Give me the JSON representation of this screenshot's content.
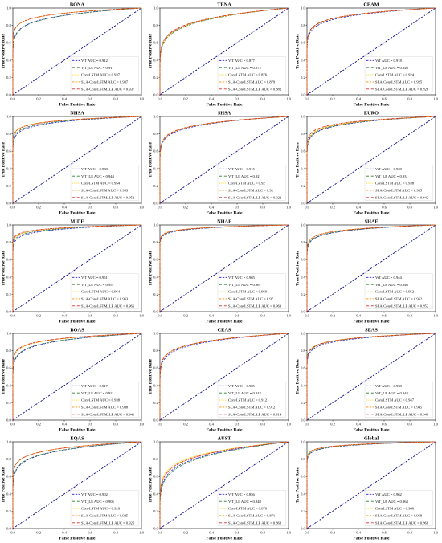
{
  "chart_data": [
    {
      "type": "line",
      "title": "BONA",
      "xlabel": "False Positive Rate",
      "ylabel": "True Positive Rate",
      "xlim": [
        0,
        1
      ],
      "ylim": [
        0,
        1
      ],
      "xticks": [
        "0.0",
        "0.2",
        "0.4",
        "0.6",
        "0.8",
        "1.0"
      ],
      "yticks": [
        "0.0",
        "0.2",
        "0.4",
        "0.6",
        "0.8",
        "1.0"
      ],
      "legend_position": "lower-right",
      "series": [
        {
          "name": "ViT AUC = 0.912",
          "color": "#1f1fd8",
          "dash": "dashed",
          "auc": 0.912
        },
        {
          "name": "ViT_LE AUC = 0.91",
          "color": "#2e7d32",
          "dash": "dashdot",
          "auc": 0.91
        },
        {
          "name": "ConvLSTM AUC = 0.937",
          "color": "#ffd600",
          "dash": "dotted",
          "auc": 0.937
        },
        {
          "name": "SLA-ConvLSTM AUC = 0.937",
          "color": "#ff8c00",
          "dash": "dashed",
          "auc": 0.937
        },
        {
          "name": "SLA-ConvLSTM_LE AUC = 0.937",
          "color": "#d32f2f",
          "dash": "dashdot",
          "auc": 0.937
        }
      ]
    },
    {
      "type": "line",
      "title": "TENA",
      "xlabel": "False Positive Rate",
      "ylabel": "True Positive Rate",
      "xlim": [
        0,
        1
      ],
      "ylim": [
        0,
        1
      ],
      "xticks": [
        "0.0",
        "0.2",
        "0.4",
        "0.6",
        "0.8",
        "1.0"
      ],
      "yticks": [
        "0.0",
        "0.2",
        "0.4",
        "0.6",
        "0.8",
        "1.0"
      ],
      "legend_position": "lower-right",
      "series": [
        {
          "name": "ViT AUC = 0.877",
          "color": "#1f1fd8",
          "dash": "dashed",
          "auc": 0.877
        },
        {
          "name": "ViT_LE AUC = 0.872",
          "color": "#2e7d32",
          "dash": "dashdot",
          "auc": 0.872
        },
        {
          "name": "ConvLSTM AUC = 0.876",
          "color": "#ffd600",
          "dash": "dotted",
          "auc": 0.876
        },
        {
          "name": "SLA-ConvLSTM AUC = 0.879",
          "color": "#ff8c00",
          "dash": "dashed",
          "auc": 0.879
        },
        {
          "name": "SLA-ConvLSTM_LE AUC = 0.882",
          "color": "#d32f2f",
          "dash": "dashdot",
          "auc": 0.882
        }
      ]
    },
    {
      "type": "line",
      "title": "CEAM",
      "xlabel": "False Positive Rate",
      "ylabel": "True Positive Rate",
      "xlim": [
        0,
        1
      ],
      "ylim": [
        0,
        1
      ],
      "xticks": [
        "0.0",
        "0.2",
        "0.4",
        "0.6",
        "0.8",
        "1.0"
      ],
      "yticks": [
        "0.0",
        "0.2",
        "0.4",
        "0.6",
        "0.8",
        "1.0"
      ],
      "legend_position": "lower-right",
      "series": [
        {
          "name": "ViT AUC = 0.918",
          "color": "#1f1fd8",
          "dash": "dashed",
          "auc": 0.918
        },
        {
          "name": "ViT_LE AUC = 0.926",
          "color": "#2e7d32",
          "dash": "dashdot",
          "auc": 0.926
        },
        {
          "name": "ConvLSTM AUC = 0.924",
          "color": "#ffd600",
          "dash": "dotted",
          "auc": 0.924
        },
        {
          "name": "SLA-ConvLSTM AUC = 0.925",
          "color": "#ff8c00",
          "dash": "dashed",
          "auc": 0.925
        },
        {
          "name": "SLA-ConvLSTM_LE AUC = 0.926",
          "color": "#d32f2f",
          "dash": "dashdot",
          "auc": 0.926
        }
      ]
    },
    {
      "type": "line",
      "title": "NHSA",
      "xlabel": "False Positive Rate",
      "ylabel": "True Positive Rate",
      "xlim": [
        0,
        1
      ],
      "ylim": [
        0,
        1
      ],
      "xticks": [
        "0.0",
        "0.2",
        "0.4",
        "0.6",
        "0.8",
        "1.0"
      ],
      "yticks": [
        "0.0",
        "0.2",
        "0.4",
        "0.6",
        "0.8",
        "1.0"
      ],
      "legend_position": "lower-right",
      "series": [
        {
          "name": "ViT AUC = 0.938",
          "color": "#1f1fd8",
          "dash": "dashed",
          "auc": 0.938
        },
        {
          "name": "ViT_LE AUC = 0.944",
          "color": "#2e7d32",
          "dash": "dashdot",
          "auc": 0.944
        },
        {
          "name": "ConvLSTM AUC = 0.954",
          "color": "#ffd600",
          "dash": "dotted",
          "auc": 0.954
        },
        {
          "name": "SLA-ConvLSTM AUC = 0.953",
          "color": "#ff8c00",
          "dash": "dashed",
          "auc": 0.953
        },
        {
          "name": "SLA-ConvLSTM_LE AUC = 0.952",
          "color": "#d32f2f",
          "dash": "dashdot",
          "auc": 0.952
        }
      ]
    },
    {
      "type": "line",
      "title": "SHSA",
      "xlabel": "False Positive Rate",
      "ylabel": "True Positive Rate",
      "xlim": [
        0,
        1
      ],
      "ylim": [
        0,
        1
      ],
      "xticks": [
        "0.0",
        "0.2",
        "0.4",
        "0.6",
        "0.8",
        "1.0"
      ],
      "yticks": [
        "0.0",
        "0.2",
        "0.4",
        "0.6",
        "0.8",
        "1.0"
      ],
      "legend_position": "lower-right",
      "series": [
        {
          "name": "ViT AUC = 0.915",
          "color": "#1f1fd8",
          "dash": "dashed",
          "auc": 0.915
        },
        {
          "name": "ViT_LE AUC = 0.92",
          "color": "#2e7d32",
          "dash": "dashdot",
          "auc": 0.92
        },
        {
          "name": "ConvLSTM AUC = 0.92",
          "color": "#ffd600",
          "dash": "dotted",
          "auc": 0.92
        },
        {
          "name": "SLA-ConvLSTM AUC = 0.92",
          "color": "#ff8c00",
          "dash": "dashed",
          "auc": 0.92
        },
        {
          "name": "SLA-ConvLSTM_LE AUC = 0.922",
          "color": "#d32f2f",
          "dash": "dashdot",
          "auc": 0.922
        }
      ]
    },
    {
      "type": "line",
      "title": "EURO",
      "xlabel": "False Positive Rate",
      "ylabel": "True Positive Rate",
      "xlim": [
        0,
        1
      ],
      "ylim": [
        0,
        1
      ],
      "xticks": [
        "0.0",
        "0.2",
        "0.4",
        "0.6",
        "0.8",
        "1.0"
      ],
      "yticks": [
        "0.0",
        "0.2",
        "0.4",
        "0.6",
        "0.8",
        "1.0"
      ],
      "legend_position": "lower-right",
      "series": [
        {
          "name": "ViT AUC = 0.928",
          "color": "#1f1fd8",
          "dash": "dashed",
          "auc": 0.928
        },
        {
          "name": "ViT_LE AUC = 0.931",
          "color": "#2e7d32",
          "dash": "dashdot",
          "auc": 0.931
        },
        {
          "name": "ConvLSTM AUC = 0.938",
          "color": "#ffd600",
          "dash": "dotted",
          "auc": 0.938
        },
        {
          "name": "SLA-ConvLSTM AUC = 0.935",
          "color": "#ff8c00",
          "dash": "dashed",
          "auc": 0.935
        },
        {
          "name": "SLA-ConvLSTM_LE AUC = 0.942",
          "color": "#d32f2f",
          "dash": "dashdot",
          "auc": 0.942
        }
      ]
    },
    {
      "type": "line",
      "title": "MIDE",
      "xlabel": "False Positive Rate",
      "ylabel": "True Positive Rate",
      "xlim": [
        0,
        1
      ],
      "ylim": [
        0,
        1
      ],
      "xticks": [
        "0.0",
        "0.2",
        "0.4",
        "0.6",
        "0.8",
        "1.0"
      ],
      "yticks": [
        "0.0",
        "0.2",
        "0.4",
        "0.6",
        "0.8",
        "1.0"
      ],
      "legend_position": "lower-right",
      "series": [
        {
          "name": "ViT AUC = 0.951",
          "color": "#1f1fd8",
          "dash": "dashed",
          "auc": 0.951
        },
        {
          "name": "ViT_LE AUC = 0.957",
          "color": "#2e7d32",
          "dash": "dashdot",
          "auc": 0.957
        },
        {
          "name": "ConvLSTM AUC = 0.964",
          "color": "#ffd600",
          "dash": "dotted",
          "auc": 0.964
        },
        {
          "name": "SLA-ConvLSTM AUC = 0.963",
          "color": "#ff8c00",
          "dash": "dashed",
          "auc": 0.963
        },
        {
          "name": "SLA-ConvLSTM_LE AUC = 0.966",
          "color": "#d32f2f",
          "dash": "dashdot",
          "auc": 0.966
        }
      ]
    },
    {
      "type": "line",
      "title": "NHAF",
      "xlabel": "False Positive Rate",
      "ylabel": "True Positive Rate",
      "xlim": [
        0,
        1
      ],
      "ylim": [
        0,
        1
      ],
      "xticks": [
        "0.0",
        "0.2",
        "0.4",
        "0.6",
        "0.8",
        "1.0"
      ],
      "yticks": [
        "0.0",
        "0.2",
        "0.4",
        "0.6",
        "0.8",
        "1.0"
      ],
      "legend_position": "lower-right",
      "series": [
        {
          "name": "ViT AUC = 0.965",
          "color": "#1f1fd8",
          "dash": "dashed",
          "auc": 0.965
        },
        {
          "name": "ViT_LE AUC = 0.967",
          "color": "#2e7d32",
          "dash": "dashdot",
          "auc": 0.967
        },
        {
          "name": "ConvLSTM AUC = 0.969",
          "color": "#ffd600",
          "dash": "dotted",
          "auc": 0.969
        },
        {
          "name": "SLA-ConvLSTM AUC = 0.97",
          "color": "#ff8c00",
          "dash": "dashed",
          "auc": 0.97
        },
        {
          "name": "SLA-ConvLSTM_LE AUC = 0.969",
          "color": "#d32f2f",
          "dash": "dashdot",
          "auc": 0.969
        }
      ]
    },
    {
      "type": "line",
      "title": "SHAF",
      "xlabel": "False Positive Rate",
      "ylabel": "True Positive Rate",
      "xlim": [
        0,
        1
      ],
      "ylim": [
        0,
        1
      ],
      "xticks": [
        "0.0",
        "0.2",
        "0.4",
        "0.6",
        "0.8",
        "1.0"
      ],
      "yticks": [
        "0.0",
        "0.2",
        "0.4",
        "0.6",
        "0.8",
        "1.0"
      ],
      "legend_position": "lower-right",
      "series": [
        {
          "name": "ViT AUC = 0.944",
          "color": "#1f1fd8",
          "dash": "dashed",
          "auc": 0.944
        },
        {
          "name": "ViT_LE AUC = 0.946",
          "color": "#2e7d32",
          "dash": "dashdot",
          "auc": 0.946
        },
        {
          "name": "ConvLSTM AUC = 0.952",
          "color": "#ffd600",
          "dash": "dotted",
          "auc": 0.952
        },
        {
          "name": "SLA-ConvLSTM AUC = 0.952",
          "color": "#ff8c00",
          "dash": "dashed",
          "auc": 0.952
        },
        {
          "name": "SLA-ConvLSTM_LE AUC = 0.952",
          "color": "#d32f2f",
          "dash": "dashdot",
          "auc": 0.952
        }
      ]
    },
    {
      "type": "line",
      "title": "BOAS",
      "xlabel": "False Positive Rate",
      "ylabel": "True Positive Rate",
      "xlim": [
        0,
        1
      ],
      "ylim": [
        0,
        1
      ],
      "xticks": [
        "0.0",
        "0.2",
        "0.4",
        "0.6",
        "0.8",
        "1.0"
      ],
      "yticks": [
        "0.0",
        "0.2",
        "0.4",
        "0.6",
        "0.8",
        "1.0"
      ],
      "legend_position": "lower-right",
      "series": [
        {
          "name": "ViT AUC = 0.917",
          "color": "#1f1fd8",
          "dash": "dashed",
          "auc": 0.917
        },
        {
          "name": "ViT_LE AUC = 0.92",
          "color": "#2e7d32",
          "dash": "dashdot",
          "auc": 0.92
        },
        {
          "name": "ConvLSTM AUC = 0.938",
          "color": "#ffd600",
          "dash": "dotted",
          "auc": 0.938
        },
        {
          "name": "SLA-ConvLSTM AUC = 0.938",
          "color": "#ff8c00",
          "dash": "dashed",
          "auc": 0.938
        },
        {
          "name": "SLA-ConvLSTM_LE AUC = 0.941",
          "color": "#d32f2f",
          "dash": "dashdot",
          "auc": 0.941
        }
      ]
    },
    {
      "type": "line",
      "title": "CEAS",
      "xlabel": "False Positive Rate",
      "ylabel": "True Positive Rate",
      "xlim": [
        0,
        1
      ],
      "ylim": [
        0,
        1
      ],
      "xticks": [
        "0.0",
        "0.2",
        "0.4",
        "0.6",
        "0.8",
        "1.0"
      ],
      "yticks": [
        "0.0",
        "0.2",
        "0.4",
        "0.6",
        "0.8",
        "1.0"
      ],
      "legend_position": "lower-right",
      "series": [
        {
          "name": "ViT AUC = 0.905",
          "color": "#1f1fd8",
          "dash": "dashed",
          "auc": 0.905
        },
        {
          "name": "ViT_LE AUC = 0.912",
          "color": "#2e7d32",
          "dash": "dashdot",
          "auc": 0.912
        },
        {
          "name": "ConvLSTM AUC = 0.912",
          "color": "#ffd600",
          "dash": "dotted",
          "auc": 0.912
        },
        {
          "name": "SLA-ConvLSTM AUC = 0.912",
          "color": "#ff8c00",
          "dash": "dashed",
          "auc": 0.912
        },
        {
          "name": "SLA-ConvLSTM_LE AUC = 0.914",
          "color": "#d32f2f",
          "dash": "dashdot",
          "auc": 0.914
        }
      ]
    },
    {
      "type": "line",
      "title": "SEAS",
      "xlabel": "False Positive Rate",
      "ylabel": "True Positive Rate",
      "xlim": [
        0,
        1
      ],
      "ylim": [
        0,
        1
      ],
      "xticks": [
        "0.0",
        "0.2",
        "0.4",
        "0.6",
        "0.8",
        "1.0"
      ],
      "yticks": [
        "0.0",
        "0.2",
        "0.4",
        "0.6",
        "0.8",
        "1.0"
      ],
      "legend_position": "lower-right",
      "series": [
        {
          "name": "ViT AUC = 0.938",
          "color": "#1f1fd8",
          "dash": "dashed",
          "auc": 0.938
        },
        {
          "name": "ViT_LE AUC = 0.944",
          "color": "#2e7d32",
          "dash": "dashdot",
          "auc": 0.944
        },
        {
          "name": "ConvLSTM AUC = 0.947",
          "color": "#ffd600",
          "dash": "dotted",
          "auc": 0.947
        },
        {
          "name": "SLA-ConvLSTM AUC = 0.945",
          "color": "#ff8c00",
          "dash": "dashed",
          "auc": 0.945
        },
        {
          "name": "SLA-ConvLSTM_LE AUC = 0.946",
          "color": "#d32f2f",
          "dash": "dashdot",
          "auc": 0.946
        }
      ]
    },
    {
      "type": "line",
      "title": "EQAS",
      "xlabel": "False Positive Rate",
      "ylabel": "True Positive Rate",
      "xlim": [
        0,
        1
      ],
      "ylim": [
        0,
        1
      ],
      "xticks": [
        "0.0",
        "0.2",
        "0.4",
        "0.6",
        "0.8",
        "1.0"
      ],
      "yticks": [
        "0.0",
        "0.2",
        "0.4",
        "0.6",
        "0.8",
        "1.0"
      ],
      "legend_position": "lower-right",
      "series": [
        {
          "name": "ViT AUC = 0.902",
          "color": "#1f1fd8",
          "dash": "dashed",
          "auc": 0.902
        },
        {
          "name": "ViT_LE AUC = 0.905",
          "color": "#2e7d32",
          "dash": "dashdot",
          "auc": 0.905
        },
        {
          "name": "ConvLSTM AUC = 0.926",
          "color": "#ffd600",
          "dash": "dotted",
          "auc": 0.926
        },
        {
          "name": "SLA-ConvLSTM AUC = 0.925",
          "color": "#ff8c00",
          "dash": "dashed",
          "auc": 0.925
        },
        {
          "name": "SLA-ConvLSTM_LE AUC = 0.925",
          "color": "#d32f2f",
          "dash": "dashdot",
          "auc": 0.925
        }
      ]
    },
    {
      "type": "line",
      "title": "AUST",
      "xlabel": "False Positive Rate",
      "ylabel": "True Positive Rate",
      "xlim": [
        0,
        1
      ],
      "ylim": [
        0,
        1
      ],
      "xticks": [
        "0.0",
        "0.2",
        "0.4",
        "0.6",
        "0.8",
        "1.0"
      ],
      "yticks": [
        "0.0",
        "0.2",
        "0.4",
        "0.6",
        "0.8",
        "1.0"
      ],
      "legend_position": "lower-right",
      "series": [
        {
          "name": "ViT AUC = 0.856",
          "color": "#1f1fd8",
          "dash": "dashed",
          "auc": 0.856
        },
        {
          "name": "ViT_LE AUC = 0.848",
          "color": "#2e7d32",
          "dash": "dashdot",
          "auc": 0.848
        },
        {
          "name": "ConvLSTM AUC = 0.878",
          "color": "#ffd600",
          "dash": "dotted",
          "auc": 0.878
        },
        {
          "name": "SLA-ConvLSTM AUC = 0.871",
          "color": "#ff8c00",
          "dash": "dashed",
          "auc": 0.871
        },
        {
          "name": "SLA-ConvLSTM_LE AUC = 0.868",
          "color": "#d32f2f",
          "dash": "dashdot",
          "auc": 0.868
        }
      ]
    },
    {
      "type": "line",
      "title": "Global",
      "xlabel": "False Positive Rate",
      "ylabel": "True Positive Rate",
      "xlim": [
        0,
        1
      ],
      "ylim": [
        0,
        1
      ],
      "xticks": [
        "0.0",
        "0.2",
        "0.4",
        "0.6",
        "0.8",
        "1.0"
      ],
      "yticks": [
        "0.0",
        "0.2",
        "0.4",
        "0.6",
        "0.8",
        "1.0"
      ],
      "legend_position": "lower-right",
      "series": [
        {
          "name": "ViT AUC = 0.962",
          "color": "#1f1fd8",
          "dash": "dashed",
          "auc": 0.962
        },
        {
          "name": "ViT_LE AUC = 0.964",
          "color": "#2e7d32",
          "dash": "dashdot",
          "auc": 0.964
        },
        {
          "name": "ConvLSTM AUC = 0.966",
          "color": "#ffd600",
          "dash": "dotted",
          "auc": 0.966
        },
        {
          "name": "SLA-ConvLSTM AUC = 0.968",
          "color": "#ff8c00",
          "dash": "dashed",
          "auc": 0.968
        },
        {
          "name": "SLA-ConvLSTM_LE AUC = 0.968",
          "color": "#d32f2f",
          "dash": "dashdot",
          "auc": 0.968
        }
      ]
    }
  ]
}
